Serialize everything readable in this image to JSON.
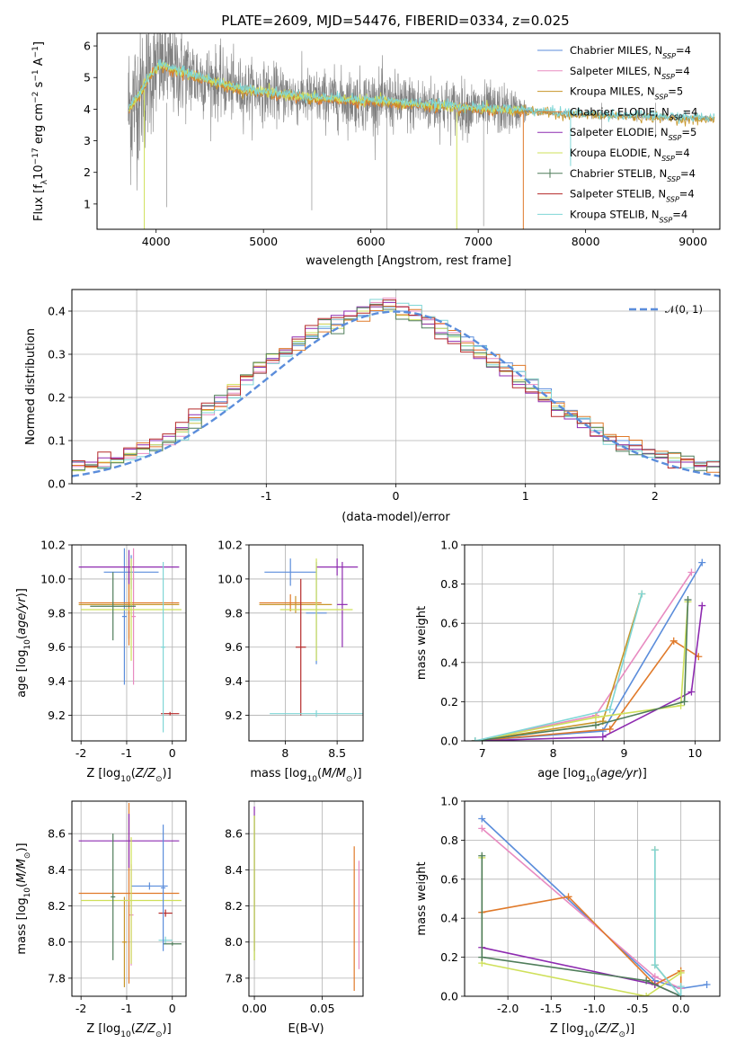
{
  "figure": {
    "title": "PLATE=2609, MJD=54476, FIBERID=0334, z=0.025"
  },
  "colors": {
    "Chabrier MILES": "#5b8ddb",
    "Salpeter MILES": "#e88bc1",
    "Kroupa MILES": "#c8962a",
    "Chabrier ELODIE": "#e07a2a",
    "Salpeter ELODIE": "#8e2bb0",
    "Kroupa ELODIE": "#cfe05a",
    "Chabrier STELIB": "#4f7d5a",
    "Salpeter STELIB": "#b52a2a",
    "Kroupa STELIB": "#7fd6d6",
    "data": "#808080"
  },
  "chart_data": [
    {
      "type": "line",
      "panel": "spectrum",
      "title": "PLATE=2609, MJD=54476, FIBERID=0334, z=0.025",
      "xlabel": "wavelength [Angstrom, rest frame]",
      "ylabel": "Flux [f",
      "ylabel_parts": [
        "Flux [f",
        "λ",
        "10",
        "−17",
        " erg cm",
        "−2",
        " s",
        "−1",
        " A",
        "−1",
        "]"
      ],
      "xlim": [
        3450,
        9250
      ],
      "ylim": [
        0.2,
        6.4
      ],
      "xticks": [
        4000,
        5000,
        6000,
        7000,
        8000,
        9000
      ],
      "yticks": [
        1,
        2,
        3,
        4,
        5,
        6
      ],
      "grid": false,
      "legend_position": "top-right",
      "legend": [
        {
          "name": "Chabrier MILES",
          "sub": "SSP",
          "n": "=4"
        },
        {
          "name": "Salpeter MILES",
          "sub": "SSP",
          "n": "=4"
        },
        {
          "name": "Kroupa MILES",
          "sub": "SSP",
          "n": "=5"
        },
        {
          "name": "Chabrier ELODIE",
          "sub": "SSP",
          "n": "=4"
        },
        {
          "name": "Salpeter ELODIE",
          "sub": "SSP",
          "n": "=5"
        },
        {
          "name": "Kroupa ELODIE",
          "sub": "SSP",
          "n": "=4"
        },
        {
          "name": "Chabrier STELIB",
          "sub": "SSP",
          "n": "=4"
        },
        {
          "name": "Salpeter STELIB",
          "sub": "SSP",
          "n": "=4"
        },
        {
          "name": "Kroupa STELIB",
          "sub": "SSP",
          "n": "=4"
        }
      ],
      "model_continuum": {
        "x": [
          3750,
          3850,
          3950,
          4050,
          4200,
          4400,
          4600,
          4800,
          5000,
          5200,
          5500,
          5800,
          6100,
          6400,
          6700,
          7000,
          7400,
          7800,
          8200,
          8600,
          9000,
          9200
        ],
        "y": [
          4.0,
          4.5,
          5.1,
          5.4,
          5.2,
          5.0,
          4.8,
          4.6,
          4.55,
          4.45,
          4.35,
          4.3,
          4.25,
          4.15,
          4.1,
          4.0,
          3.95,
          3.85,
          3.8,
          3.75,
          3.7,
          3.68
        ]
      },
      "data_noise_envelope": {
        "x": [
          3750,
          4000,
          4500,
          5000,
          5500,
          6000,
          6500,
          7000,
          7300,
          7500,
          8000,
          8500,
          9000,
          9200
        ],
        "sigma": [
          2.2,
          1.6,
          1.0,
          0.8,
          0.8,
          0.85,
          0.8,
          0.75,
          0.7,
          0.1,
          0.08,
          0.08,
          0.08,
          0.08
        ]
      }
    },
    {
      "type": "line",
      "panel": "residuals",
      "xlabel": "(data-model)/error",
      "ylabel": "Normed distribution",
      "xlim": [
        -2.5,
        2.5
      ],
      "ylim": [
        0,
        0.45
      ],
      "xticks": [
        -2,
        -1,
        0,
        1,
        2
      ],
      "yticks": [
        0.0,
        0.1,
        0.2,
        0.3,
        0.4
      ],
      "grid": true,
      "legend_position": "top-right",
      "legend": [
        {
          "name": "𝒩(0, 1)"
        }
      ],
      "bin_width": 0.1,
      "series": [
        {
          "values": [
            0.05,
            0.04,
            0.05,
            0.06,
            0.07,
            0.08,
            0.09,
            0.1,
            0.12,
            0.15,
            0.17,
            0.19,
            0.22,
            0.25,
            0.27,
            0.29,
            0.3,
            0.32,
            0.34,
            0.36,
            0.37,
            0.38,
            0.39,
            0.4,
            0.41,
            0.4,
            0.39,
            0.38,
            0.36,
            0.35,
            0.34,
            0.32,
            0.3,
            0.28,
            0.26,
            0.24,
            0.22,
            0.19,
            0.17,
            0.15,
            0.13,
            0.11,
            0.1,
            0.09,
            0.08,
            0.07,
            0.06,
            0.05,
            0.05,
            0.04
          ]
        },
        {
          "values": [
            0.04,
            0.05,
            0.04,
            0.06,
            0.06,
            0.07,
            0.08,
            0.09,
            0.11,
            0.14,
            0.16,
            0.18,
            0.21,
            0.24,
            0.26,
            0.28,
            0.31,
            0.33,
            0.35,
            0.37,
            0.38,
            0.39,
            0.4,
            0.42,
            0.43,
            0.41,
            0.4,
            0.38,
            0.37,
            0.35,
            0.33,
            0.31,
            0.29,
            0.27,
            0.25,
            0.23,
            0.21,
            0.18,
            0.16,
            0.14,
            0.12,
            0.1,
            0.09,
            0.08,
            0.07,
            0.06,
            0.05,
            0.05,
            0.04,
            0.04
          ]
        },
        {
          "values": [
            0.03,
            0.04,
            0.05,
            0.05,
            0.07,
            0.08,
            0.09,
            0.1,
            0.12,
            0.14,
            0.17,
            0.2,
            0.23,
            0.25,
            0.28,
            0.3,
            0.31,
            0.33,
            0.35,
            0.37,
            0.36,
            0.38,
            0.4,
            0.41,
            0.4,
            0.39,
            0.38,
            0.37,
            0.36,
            0.34,
            0.32,
            0.3,
            0.28,
            0.26,
            0.24,
            0.22,
            0.2,
            0.18,
            0.16,
            0.14,
            0.13,
            0.11,
            0.09,
            0.08,
            0.07,
            0.06,
            0.06,
            0.05,
            0.04,
            0.04
          ]
        },
        {
          "values": [
            0.05,
            0.05,
            0.06,
            0.06,
            0.08,
            0.09,
            0.1,
            0.11,
            0.13,
            0.16,
            0.18,
            0.2,
            0.22,
            0.24,
            0.27,
            0.29,
            0.31,
            0.34,
            0.36,
            0.38,
            0.39,
            0.4,
            0.41,
            0.41,
            0.42,
            0.41,
            0.39,
            0.37,
            0.35,
            0.33,
            0.31,
            0.29,
            0.27,
            0.25,
            0.23,
            0.21,
            0.19,
            0.17,
            0.15,
            0.13,
            0.11,
            0.1,
            0.09,
            0.08,
            0.07,
            0.06,
            0.05,
            0.05,
            0.04,
            0.04
          ]
        }
      ],
      "gaussian": {
        "mean": 0,
        "sigma": 1
      }
    },
    {
      "type": "scatter",
      "panel": "age-vs-Z",
      "xlabel": "Z [log10(Z/Z⊙)]",
      "ylabel": "age  [log10(age/yr)]",
      "xlim": [
        -2.2,
        0.3
      ],
      "ylim": [
        9.05,
        10.2
      ],
      "xticks": [
        -2,
        -1,
        0
      ],
      "yticks": [
        9.2,
        9.4,
        9.6,
        9.8,
        10.0,
        10.2
      ],
      "grid": true,
      "errorbars": [
        {
          "series": "Chabrier MILES",
          "x": -0.9,
          "y": 10.04,
          "xerr": 0.6,
          "yerr": 0.1
        },
        {
          "series": "Chabrier MILES",
          "x": -1.05,
          "y": 9.78,
          "xerr": 0.05,
          "yerr": 0.4
        },
        {
          "series": "Salpeter MILES",
          "x": -0.85,
          "y": 9.78,
          "xerr": 0.05,
          "yerr": 0.4
        },
        {
          "series": "Kroupa MILES",
          "x": -0.95,
          "y": 9.85,
          "xerr": 1.1,
          "yerr": 0.2
        },
        {
          "series": "Chabrier ELODIE",
          "x": -0.95,
          "y": 9.86,
          "xerr": 1.1,
          "yerr": 0.25
        },
        {
          "series": "Salpeter ELODIE",
          "x": -0.95,
          "y": 10.07,
          "xerr": 1.1,
          "yerr": 0.1
        },
        {
          "series": "Kroupa ELODIE",
          "x": -0.9,
          "y": 9.82,
          "xerr": 1.1,
          "yerr": 0.3
        },
        {
          "series": "Chabrier STELIB",
          "x": -1.3,
          "y": 9.84,
          "xerr": 0.5,
          "yerr": 0.2
        },
        {
          "series": "Salpeter STELIB",
          "x": -0.05,
          "y": 9.21,
          "xerr": 0.2,
          "yerr": 0.01
        },
        {
          "series": "Kroupa STELIB",
          "x": -0.2,
          "y": 9.6,
          "xerr": 0.05,
          "yerr": 0.5
        }
      ]
    },
    {
      "type": "scatter",
      "panel": "age-vs-mass",
      "xlabel": "mass [log10(M/M⊙)]",
      "ylabel": "",
      "xlim": [
        7.65,
        8.75
      ],
      "ylim": [
        9.05,
        10.2
      ],
      "xticks": [
        8.0,
        8.5
      ],
      "yticks": [
        9.2,
        9.4,
        9.6,
        9.8,
        10.0,
        10.2
      ],
      "grid": true,
      "errorbars": [
        {
          "series": "Chabrier MILES",
          "x": 8.05,
          "y": 10.04,
          "xerr": 0.25,
          "yerr": 0.08
        },
        {
          "series": "Chabrier MILES",
          "x": 8.3,
          "y": 9.8,
          "xerr": 0.1,
          "yerr": 0.3
        },
        {
          "series": "Kroupa MILES",
          "x": 8.1,
          "y": 9.85,
          "xerr": 0.35,
          "yerr": 0.05
        },
        {
          "series": "Chabrier ELODIE",
          "x": 8.05,
          "y": 9.86,
          "xerr": 0.3,
          "yerr": 0.05
        },
        {
          "series": "Salpeter ELODIE",
          "x": 8.5,
          "y": 10.07,
          "xerr": 0.2,
          "yerr": 0.05
        },
        {
          "series": "Salpeter ELODIE",
          "x": 8.55,
          "y": 9.85,
          "xerr": 0.05,
          "yerr": 0.25
        },
        {
          "series": "Kroupa ELODIE",
          "x": 8.3,
          "y": 9.82,
          "xerr": 0.35,
          "yerr": 0.3
        },
        {
          "series": "Salpeter STELIB",
          "x": 8.15,
          "y": 9.6,
          "xerr": 0.05,
          "yerr": 0.4
        },
        {
          "series": "Kroupa STELIB",
          "x": 8.3,
          "y": 9.21,
          "xerr": 0.45,
          "yerr": 0.02
        }
      ]
    },
    {
      "type": "line",
      "panel": "weight-vs-age",
      "xlabel": "age  [log10(age/yr)]",
      "ylabel": "mass weight",
      "xlim": [
        6.75,
        10.35
      ],
      "ylim": [
        0.0,
        1.0
      ],
      "xticks": [
        7,
        8,
        9,
        10
      ],
      "yticks": [
        0.0,
        0.2,
        0.4,
        0.6,
        0.8,
        1.0
      ],
      "grid": true,
      "series": [
        {
          "name": "Chabrier MILES",
          "x": [
            6.9,
            8.7,
            10.1
          ],
          "y": [
            0.0,
            0.05,
            0.91
          ]
        },
        {
          "name": "Salpeter MILES",
          "x": [
            6.9,
            8.6,
            9.95
          ],
          "y": [
            0.0,
            0.13,
            0.86
          ]
        },
        {
          "name": "Kroupa MILES",
          "x": [
            6.9,
            8.7,
            9.25
          ],
          "y": [
            0.0,
            0.1,
            0.75
          ]
        },
        {
          "name": "Chabrier ELODIE",
          "x": [
            6.9,
            8.8,
            9.7,
            10.05
          ],
          "y": [
            0.0,
            0.06,
            0.51,
            0.43
          ]
        },
        {
          "name": "Salpeter ELODIE",
          "x": [
            6.9,
            8.7,
            9.95,
            10.1
          ],
          "y": [
            0.0,
            0.02,
            0.25,
            0.69
          ]
        },
        {
          "name": "Kroupa ELODIE",
          "x": [
            6.9,
            8.6,
            9.8,
            9.9
          ],
          "y": [
            0.0,
            0.12,
            0.18,
            0.71
          ]
        },
        {
          "name": "Chabrier STELIB",
          "x": [
            6.9,
            8.6,
            9.85,
            9.9
          ],
          "y": [
            0.0,
            0.08,
            0.2,
            0.72
          ]
        },
        {
          "name": "Kroupa STELIB",
          "x": [
            6.9,
            8.8,
            9.25
          ],
          "y": [
            0.0,
            0.16,
            0.75
          ]
        }
      ]
    },
    {
      "type": "scatter",
      "panel": "mass-vs-Z",
      "xlabel": "Z [log10(Z/Z⊙)]",
      "ylabel": "mass [log10(M/M⊙)]",
      "xlim": [
        -2.2,
        0.3
      ],
      "ylim": [
        7.7,
        8.78
      ],
      "xticks": [
        -2,
        -1,
        0
      ],
      "yticks": [
        7.8,
        8.0,
        8.2,
        8.4,
        8.6
      ],
      "grid": true,
      "errorbars": [
        {
          "series": "Chabrier MILES",
          "x": -0.5,
          "y": 8.31,
          "xerr": 0.4,
          "yerr": 0.02
        },
        {
          "series": "Salpeter MILES",
          "x": -0.9,
          "y": 8.15,
          "xerr": 0.05,
          "yerr": 0.28
        },
        {
          "series": "Kroupa MILES",
          "x": -1.05,
          "y": 8.0,
          "xerr": 0.05,
          "yerr": 0.25
        },
        {
          "series": "Chabrier ELODIE",
          "x": -0.95,
          "y": 8.27,
          "xerr": 1.1,
          "yerr": 0.5
        },
        {
          "series": "Salpeter ELODIE",
          "x": -0.95,
          "y": 8.56,
          "xerr": 1.1,
          "yerr": 0.15
        },
        {
          "series": "Kroupa ELODIE",
          "x": -0.9,
          "y": 8.23,
          "xerr": 1.1,
          "yerr": 0.35
        },
        {
          "series": "Chabrier STELIB",
          "x": -1.3,
          "y": 8.25,
          "xerr": 0.05,
          "yerr": 0.35
        },
        {
          "series": "Salpeter STELIB",
          "x": -0.15,
          "y": 8.16,
          "xerr": 0.15,
          "yerr": 0.02
        },
        {
          "series": "Kroupa STELIB",
          "x": -0.15,
          "y": 8.01,
          "xerr": 0.15,
          "yerr": 0.02
        },
        {
          "series": "Chabrier STELIB",
          "x": 0.0,
          "y": 7.99,
          "xerr": 0.2,
          "yerr": 0.01
        },
        {
          "series": "Chabrier MILES",
          "x": -0.2,
          "y": 8.3,
          "xerr": 0.05,
          "yerr": 0.35
        }
      ]
    },
    {
      "type": "scatter",
      "panel": "mass-vs-EBV",
      "xlabel": "E(B-V)",
      "ylabel": "",
      "xlim": [
        -0.004,
        0.08
      ],
      "ylim": [
        7.7,
        8.78
      ],
      "xticks": [
        0.0,
        0.05
      ],
      "yticks": [
        7.8,
        8.0,
        8.2,
        8.4,
        8.6
      ],
      "grid": true,
      "errorbars": [
        {
          "series": "Salpeter ELODIE",
          "x": 0.0,
          "y": 8.35,
          "xerr": 0.0,
          "yerr": 0.4
        },
        {
          "series": "Chabrier STELIB",
          "x": 0.0,
          "y": 8.3,
          "xerr": 0.0,
          "yerr": 0.4
        },
        {
          "series": "Kroupa ELODIE",
          "x": 0.0,
          "y": 8.3,
          "xerr": 0.0,
          "yerr": 0.4
        },
        {
          "series": "Chabrier ELODIE",
          "x": 0.0735,
          "y": 8.13,
          "xerr": 0.0,
          "yerr": 0.4
        },
        {
          "series": "Salpeter MILES",
          "x": 0.077,
          "y": 8.15,
          "xerr": 0.0,
          "yerr": 0.3
        }
      ]
    },
    {
      "type": "line",
      "panel": "weight-vs-Z",
      "xlabel": "Z [log10(Z/Z⊙)]",
      "ylabel": "mass weight",
      "xlim": [
        -2.5,
        0.45
      ],
      "ylim": [
        0.0,
        1.0
      ],
      "xticks": [
        -2.0,
        -1.5,
        -1.0,
        -0.5,
        0.0
      ],
      "yticks": [
        0.0,
        0.2,
        0.4,
        0.6,
        0.8,
        1.0
      ],
      "grid": true,
      "series": [
        {
          "name": "Chabrier MILES",
          "x": [
            -2.3,
            -0.3,
            0.0,
            0.3
          ],
          "y": [
            0.91,
            0.08,
            0.04,
            0.06
          ]
        },
        {
          "name": "Salpeter MILES",
          "x": [
            -2.3,
            -0.3,
            0.0
          ],
          "y": [
            0.86,
            0.1,
            0.04
          ]
        },
        {
          "name": "Kroupa MILES",
          "x": [
            -0.3,
            -0.3,
            0.0
          ],
          "y": [
            0.75,
            0.16,
            0.0
          ]
        },
        {
          "name": "Chabrier ELODIE",
          "x": [
            -2.3,
            -1.3,
            -0.3,
            0.0,
            0.0
          ],
          "y": [
            0.43,
            0.51,
            0.06,
            0.13,
            0.0
          ]
        },
        {
          "name": "Salpeter ELODIE",
          "x": [
            -2.3,
            -0.3,
            0.0
          ],
          "y": [
            0.25,
            0.06,
            0.0
          ]
        },
        {
          "name": "Kroupa ELODIE",
          "x": [
            -2.3,
            -2.3,
            -0.4,
            0.0
          ],
          "y": [
            0.71,
            0.17,
            0.0,
            0.12
          ]
        },
        {
          "name": "Chabrier STELIB",
          "x": [
            -2.3,
            -2.3,
            -0.4,
            0.0
          ],
          "y": [
            0.72,
            0.2,
            0.08,
            0.0
          ]
        },
        {
          "name": "Kroupa STELIB",
          "x": [
            -0.3,
            -0.3,
            0.0,
            0.0
          ],
          "y": [
            0.75,
            0.16,
            0.0,
            0.05
          ]
        }
      ]
    }
  ],
  "text": {
    "title": "PLATE=2609, MJD=54476, FIBERID=0334, z=0.025",
    "spec_xlabel": "wavelength [Angstrom, rest frame]",
    "resid_xlabel": "(data-model)/error",
    "resid_ylabel": "Normed distribution",
    "age_ylabel": "age  [log",
    "weight_ylabel": "mass weight",
    "ebv_xlabel": "E(B-V)"
  }
}
